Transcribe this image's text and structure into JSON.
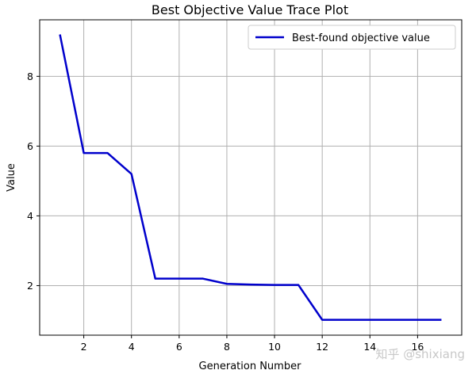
{
  "chart_data": {
    "type": "line",
    "title": "Best Objective Value Trace Plot",
    "xlabel": "Generation Number",
    "ylabel": "Value",
    "xlim": [
      0.15,
      17.85
    ],
    "ylim": [
      0.58,
      9.62
    ],
    "xticks": [
      2,
      4,
      6,
      8,
      10,
      12,
      14,
      16
    ],
    "yticks": [
      2,
      4,
      6,
      8
    ],
    "grid": true,
    "legend_position": "top-right",
    "series": [
      {
        "name": "Best-found objective value",
        "color": "#0000cc",
        "x": [
          1,
          2,
          3,
          4,
          5,
          6,
          7,
          8,
          9,
          10,
          11,
          12,
          13,
          14,
          15,
          16,
          17
        ],
        "y": [
          9.2,
          5.8,
          5.8,
          5.2,
          2.2,
          2.2,
          2.2,
          2.05,
          2.03,
          2.02,
          2.02,
          1.02,
          1.02,
          1.02,
          1.02,
          1.02,
          1.02
        ]
      }
    ]
  },
  "watermark": "知乎 @shixiang"
}
